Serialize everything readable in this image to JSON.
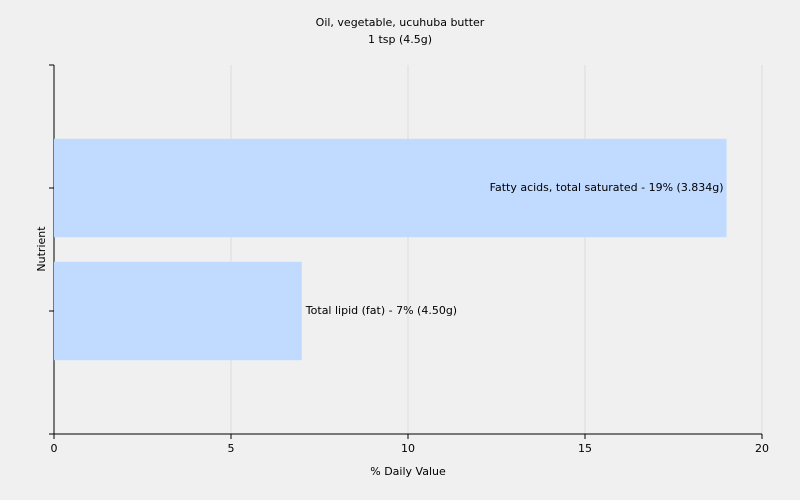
{
  "chart_data": {
    "type": "bar",
    "orientation": "horizontal",
    "title": "Oil, vegetable, ucuhuba butter",
    "subtitle": "1 tsp (4.5g)",
    "xlabel": "% Daily Value",
    "ylabel": "Nutrient",
    "values": [
      19,
      7
    ],
    "value_labels": [
      "Fatty acids, total saturated - 19% (3.834g)",
      "Total lipid (fat) - 7% (4.50g)"
    ],
    "color": "#c0dbff",
    "xlim": [
      0,
      20
    ],
    "xticks": [
      0,
      5,
      10,
      15,
      20
    ],
    "grid": true
  }
}
